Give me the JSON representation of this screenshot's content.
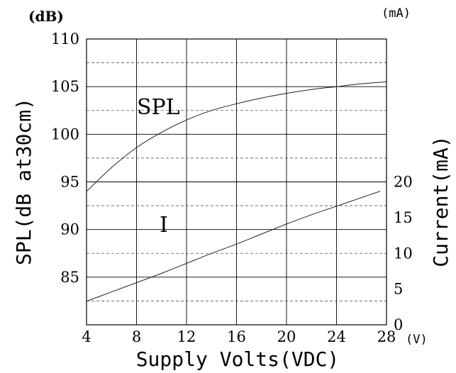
{
  "chart_data": {
    "type": "line",
    "title": "",
    "xlabel": "Supply Volts(VDC)",
    "x_unit": "(V)",
    "ylabel_left": "SPL(dB at30cm)",
    "y_unit_left": "(dB)",
    "ylabel_right": "Current(mA)",
    "y_unit_right": "(mA)",
    "xlim": [
      4,
      28
    ],
    "ylim_left": [
      80,
      110
    ],
    "ylim_right": [
      0,
      40
    ],
    "x_ticks": [
      "4",
      "8",
      "12",
      "16",
      "20",
      "24",
      "28"
    ],
    "y_ticks_left": [
      "85",
      "90",
      "95",
      "100",
      "105",
      "110"
    ],
    "y_ticks_right": [
      "0",
      "5",
      "10",
      "15",
      "20"
    ],
    "grid": true,
    "series": [
      {
        "name": "SPL",
        "axis": "left",
        "x": [
          4,
          6,
          8,
          10,
          12,
          14,
          16,
          18,
          20,
          22,
          24,
          26,
          28
        ],
        "y": [
          94.0,
          96.5,
          98.6,
          100.2,
          101.5,
          102.5,
          103.2,
          103.8,
          104.3,
          104.7,
          105.0,
          105.3,
          105.5
        ]
      },
      {
        "name": "I",
        "axis": "right",
        "x": [
          4,
          6,
          8,
          10,
          12,
          14,
          16,
          18,
          20,
          22,
          24,
          26,
          27.5
        ],
        "y": [
          3.3,
          4.6,
          5.9,
          7.2,
          8.6,
          10.0,
          11.3,
          12.7,
          14.1,
          15.4,
          16.6,
          17.8,
          18.7
        ]
      }
    ]
  }
}
